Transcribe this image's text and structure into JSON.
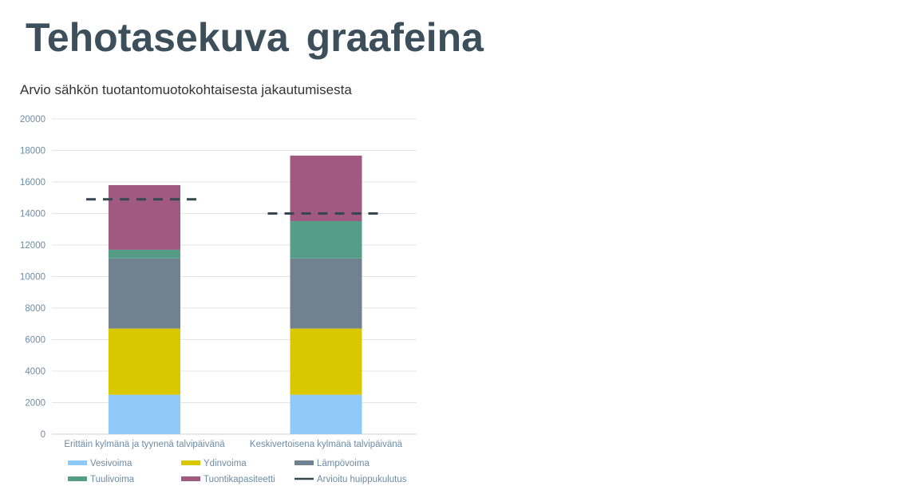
{
  "slide_title": "Tehotasekuva graafeina",
  "chart_data": {
    "type": "bar",
    "stacked": true,
    "title": "Arvio sähkön tuotantomuotokohtaisesta jakautumisesta",
    "categories": [
      "Erittäin kylmänä ja tyynenä talvipäivänä",
      "Keskivertoisena kylmänä talvipäivänä"
    ],
    "ylim": [
      0,
      20000
    ],
    "yticks": [
      0,
      2000,
      4000,
      6000,
      8000,
      10000,
      12000,
      14000,
      16000,
      18000,
      20000
    ],
    "grid": true,
    "legend_position": "bottom",
    "series": [
      {
        "name": "Vesivoima",
        "color": "#8ec9f8",
        "values": [
          2500,
          2500
        ]
      },
      {
        "name": "Ydinvoima",
        "color": "#d9c800",
        "values": [
          4200,
          4200
        ]
      },
      {
        "name": "Lämpövoima",
        "color": "#70828f",
        "values": [
          4450,
          4450
        ]
      },
      {
        "name": "Tuulivoima",
        "color": "#559d86",
        "values": [
          550,
          2370
        ]
      },
      {
        "name": "Tuontikapasiteetti",
        "color": "#a05a82",
        "values": [
          4100,
          4150
        ]
      }
    ],
    "line_series": {
      "name": "Arvioitu huippukulutus",
      "color": "#37474f",
      "style": "dashed",
      "values": [
        14900,
        14000
      ]
    }
  }
}
